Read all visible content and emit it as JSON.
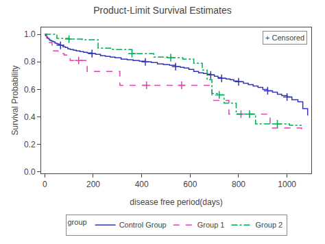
{
  "chart_data": {
    "type": "line",
    "title": "Product-Limit Survival Estimates",
    "xlabel": "disease free period(days)",
    "ylabel": "Survival Probability",
    "xlim": [
      -15,
      1100
    ],
    "ylim": [
      -0.01,
      1.05
    ],
    "xticks": [
      0,
      200,
      400,
      600,
      800,
      1000
    ],
    "yticks": [
      {
        "value": 0.0,
        "label": "0.0"
      },
      0.2,
      0.4,
      0.6,
      0.8,
      {
        "value": 1.0,
        "label": "1.0"
      }
    ],
    "grid": false,
    "legend": "bottom",
    "legend_title": "group",
    "marker": "+",
    "annotations": [
      "+ Censored"
    ],
    "series": [
      {
        "name": "Control Group",
        "color": "#3333bb",
        "line_style": "solid",
        "x": [
          0,
          3,
          8,
          12,
          18,
          22,
          28,
          35,
          42,
          50,
          58,
          65,
          75,
          85,
          95,
          105,
          118,
          130,
          145,
          160,
          175,
          195,
          210,
          230,
          250,
          270,
          290,
          315,
          340,
          365,
          390,
          415,
          440,
          465,
          490,
          515,
          540,
          560,
          575,
          595,
          615,
          635,
          655,
          670,
          685,
          700,
          715,
          730,
          748,
          765,
          780,
          800,
          820,
          840,
          860,
          880,
          900,
          920,
          940,
          960,
          978,
          1000,
          1020,
          1045,
          1065,
          1085
        ],
        "values": [
          1.0,
          0.99,
          0.98,
          0.97,
          0.96,
          0.955,
          0.95,
          0.945,
          0.935,
          0.93,
          0.925,
          0.92,
          0.91,
          0.905,
          0.895,
          0.89,
          0.885,
          0.88,
          0.875,
          0.87,
          0.865,
          0.86,
          0.855,
          0.845,
          0.84,
          0.835,
          0.83,
          0.82,
          0.815,
          0.81,
          0.805,
          0.8,
          0.795,
          0.785,
          0.78,
          0.775,
          0.765,
          0.76,
          0.755,
          0.745,
          0.73,
          0.72,
          0.715,
          0.71,
          0.705,
          0.695,
          0.685,
          0.68,
          0.675,
          0.67,
          0.66,
          0.655,
          0.645,
          0.635,
          0.625,
          0.615,
          0.6,
          0.59,
          0.58,
          0.565,
          0.555,
          0.545,
          0.525,
          0.51,
          0.46,
          0.41
        ],
        "censored_x": [
          65,
          195,
          415,
          540,
          685,
          730,
          800,
          920,
          1000
        ],
        "censored_values": [
          0.92,
          0.86,
          0.8,
          0.765,
          0.705,
          0.68,
          0.655,
          0.59,
          0.545
        ]
      },
      {
        "name": "Group 1",
        "color": "#dd44aa",
        "line_style": "dash",
        "x": [
          0,
          8,
          15,
          30,
          55,
          80,
          105,
          140,
          175,
          225,
          310,
          420,
          510,
          565,
          610,
          670,
          690,
          720,
          760,
          810,
          870,
          930,
          1000,
          1060
        ],
        "values": [
          1.0,
          0.97,
          0.94,
          0.88,
          0.86,
          0.85,
          0.81,
          0.81,
          0.73,
          0.73,
          0.63,
          0.63,
          0.63,
          0.63,
          0.63,
          0.63,
          0.52,
          0.52,
          0.42,
          0.42,
          0.42,
          0.32,
          0.32,
          0.31
        ],
        "censored_x": [
          140,
          420,
          565,
          810
        ],
        "censored_values": [
          0.81,
          0.63,
          0.63,
          0.42
        ]
      },
      {
        "name": "Group 2",
        "color": "#00aa55",
        "line_style": "dashdot",
        "x": [
          0,
          10,
          50,
          100,
          155,
          220,
          280,
          360,
          450,
          520,
          570,
          615,
          650,
          670,
          690,
          720,
          740,
          770,
          790,
          820,
          845,
          870,
          900,
          960,
          1010,
          1060
        ],
        "values": [
          1.0,
          1.0,
          0.97,
          0.965,
          0.96,
          0.9,
          0.89,
          0.86,
          0.835,
          0.83,
          0.82,
          0.79,
          0.74,
          0.67,
          0.57,
          0.56,
          0.5,
          0.5,
          0.42,
          0.42,
          0.42,
          0.35,
          0.35,
          0.35,
          0.34,
          0.34
        ],
        "censored_x": [
          100,
          360,
          520,
          720,
          845,
          960
        ],
        "censored_values": [
          0.965,
          0.86,
          0.83,
          0.56,
          0.42,
          0.35
        ]
      }
    ]
  }
}
